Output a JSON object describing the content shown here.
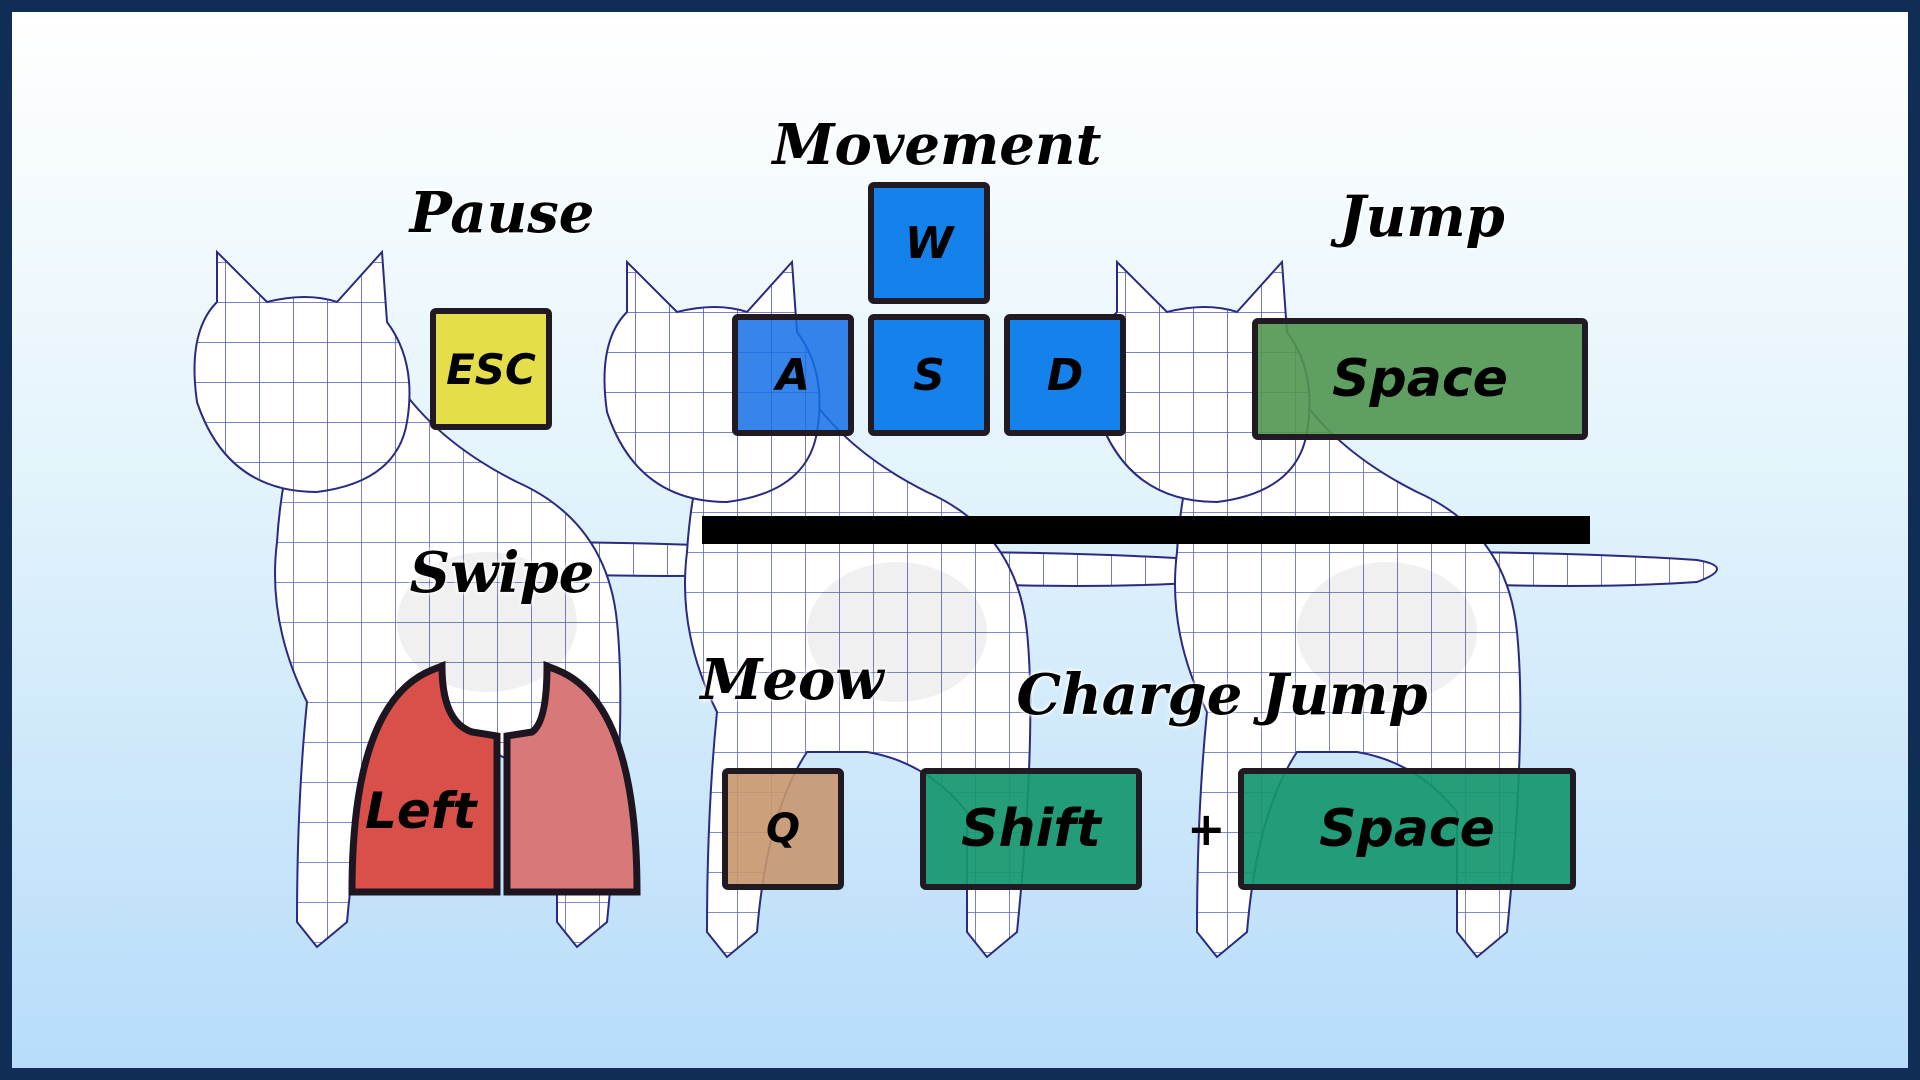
{
  "labels": {
    "pause": "Pause",
    "movement": "Movement",
    "jump": "Jump",
    "swipe": "Swipe",
    "meow": "Meow",
    "charge_jump": "Charge Jump"
  },
  "keys": {
    "esc": "ESC",
    "w": "W",
    "a": "A",
    "s": "S",
    "d": "D",
    "space_jump": "Space",
    "q": "Q",
    "shift": "Shift",
    "plus": "+",
    "space_charge": "Space",
    "swipe_left": "Left"
  },
  "colors": {
    "esc": "#e3de4a",
    "movement": "#1482ea",
    "jump": "#5a9e5a",
    "meow": "#cfa27a",
    "charge": "#1a9a72",
    "swipe_left": "#d9504a",
    "swipe_right": "#d97878"
  },
  "icons": [
    "cat-wireframe-model",
    "cat-paw-swipe-icon"
  ]
}
